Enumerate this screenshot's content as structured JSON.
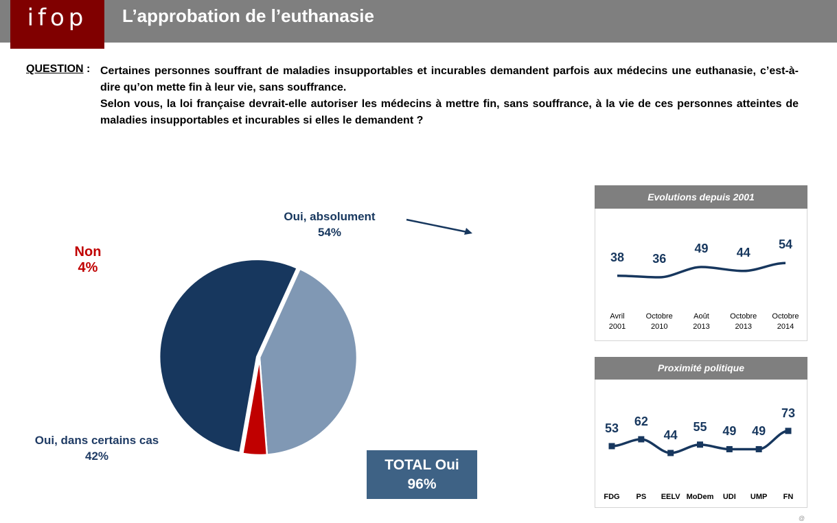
{
  "header": {
    "logo_text": "ifop",
    "title": "L’approbation de l’euthanasie"
  },
  "question": {
    "label": "QUESTION",
    "colon": " :",
    "lines": [
      "Certaines personnes souffrant de maladies insupportables et incurables demandent parfois aux médecins une euthanasie, c’est-à-dire qu’on mette fin à leur vie, sans souffrance.",
      "Selon vous, la loi française devrait-elle autoriser les médecins à mettre fin, sans souffrance, à la vie de ces personnes atteintes de maladies insupportables et incurables si elles le demandent ?"
    ]
  },
  "chart_data": [
    {
      "type": "pie",
      "slices": [
        {
          "label": "Oui, absolument",
          "value": 54,
          "value_label": "54%",
          "color": "#17375e"
        },
        {
          "label": "Oui, dans certains cas",
          "value": 42,
          "value_label": "42%",
          "color": "#8098b4"
        },
        {
          "label": "Non",
          "value": 4,
          "value_label": "4%",
          "color": "#c00000"
        }
      ],
      "total": {
        "label": "TOTAL Oui",
        "value_label": "96%"
      }
    },
    {
      "type": "line",
      "title": "Evolutions depuis 2001",
      "categories": [
        [
          "Avril",
          "2001"
        ],
        [
          "Octobre",
          "2010"
        ],
        [
          "Août",
          "2013"
        ],
        [
          "Octobre",
          "2013"
        ],
        [
          "Octobre",
          "2014"
        ]
      ],
      "values": [
        38,
        36,
        49,
        44,
        54
      ],
      "color": "#17375e",
      "markers": false
    },
    {
      "type": "line",
      "title": "Proximité politique",
      "categories": [
        "FDG",
        "PS",
        "EELV",
        "MoDem",
        "UDI",
        "UMP",
        "FN"
      ],
      "values": [
        53,
        62,
        44,
        55,
        49,
        49,
        73
      ],
      "color": "#17375e",
      "markers": true
    }
  ],
  "footer": {
    "mark": "@"
  }
}
